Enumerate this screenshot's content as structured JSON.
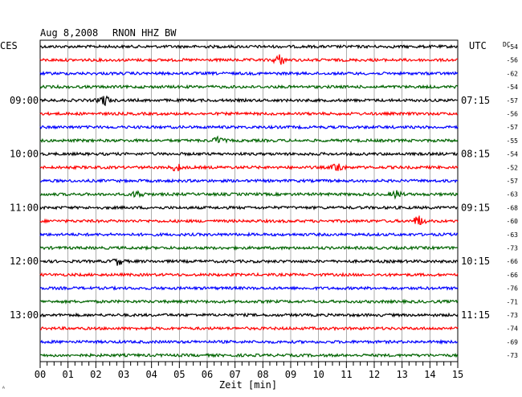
{
  "header": {
    "date": "Aug 8,2008",
    "station": "RNON HHZ BW",
    "left_label": "CES",
    "right_label": "UTC",
    "dc_label": "DC"
  },
  "chart_data": {
    "type": "line",
    "title": "Aug 8,2008   RNON HHZ BW",
    "xlabel": "Zeit [min]",
    "xlim": [
      0,
      15
    ],
    "x_ticks": [
      "00",
      "01",
      "02",
      "03",
      "04",
      "05",
      "06",
      "07",
      "08",
      "09",
      "10",
      "11",
      "12",
      "13",
      "14",
      "15"
    ],
    "left_hour_labels": [
      "09:00",
      "10:00",
      "11:00",
      "12:00",
      "13:00"
    ],
    "right_hour_labels": [
      "07:15",
      "08:15",
      "09:15",
      "10:15",
      "11:15"
    ],
    "trace_colors": [
      "#000000",
      "#ff0000",
      "#0000ff",
      "#006400"
    ],
    "dc_offsets": [
      -54,
      -56,
      -62,
      -54,
      -57,
      -56,
      -57,
      -55,
      -54,
      -52,
      -57,
      -63,
      -68,
      -60,
      -63,
      -73,
      -66,
      -66,
      -76,
      -71,
      -73,
      -74,
      -69,
      -73
    ],
    "traces_count": 24,
    "trace_interval_min": 15,
    "events": [
      {
        "trace": 1,
        "minute": 8.6,
        "amplitude": "high"
      },
      {
        "trace": 4,
        "minute": 2.3,
        "amplitude": "high"
      },
      {
        "trace": 7,
        "minute": 6.4,
        "amplitude": "medium"
      },
      {
        "trace": 9,
        "minute": 4.9,
        "amplitude": "medium"
      },
      {
        "trace": 9,
        "minute": 10.7,
        "amplitude": "high"
      },
      {
        "trace": 11,
        "minute": 3.5,
        "amplitude": "medium"
      },
      {
        "trace": 11,
        "minute": 12.8,
        "amplitude": "medium"
      },
      {
        "trace": 13,
        "minute": 13.6,
        "amplitude": "high"
      },
      {
        "trace": 16,
        "minute": 2.8,
        "amplitude": "medium"
      }
    ]
  }
}
